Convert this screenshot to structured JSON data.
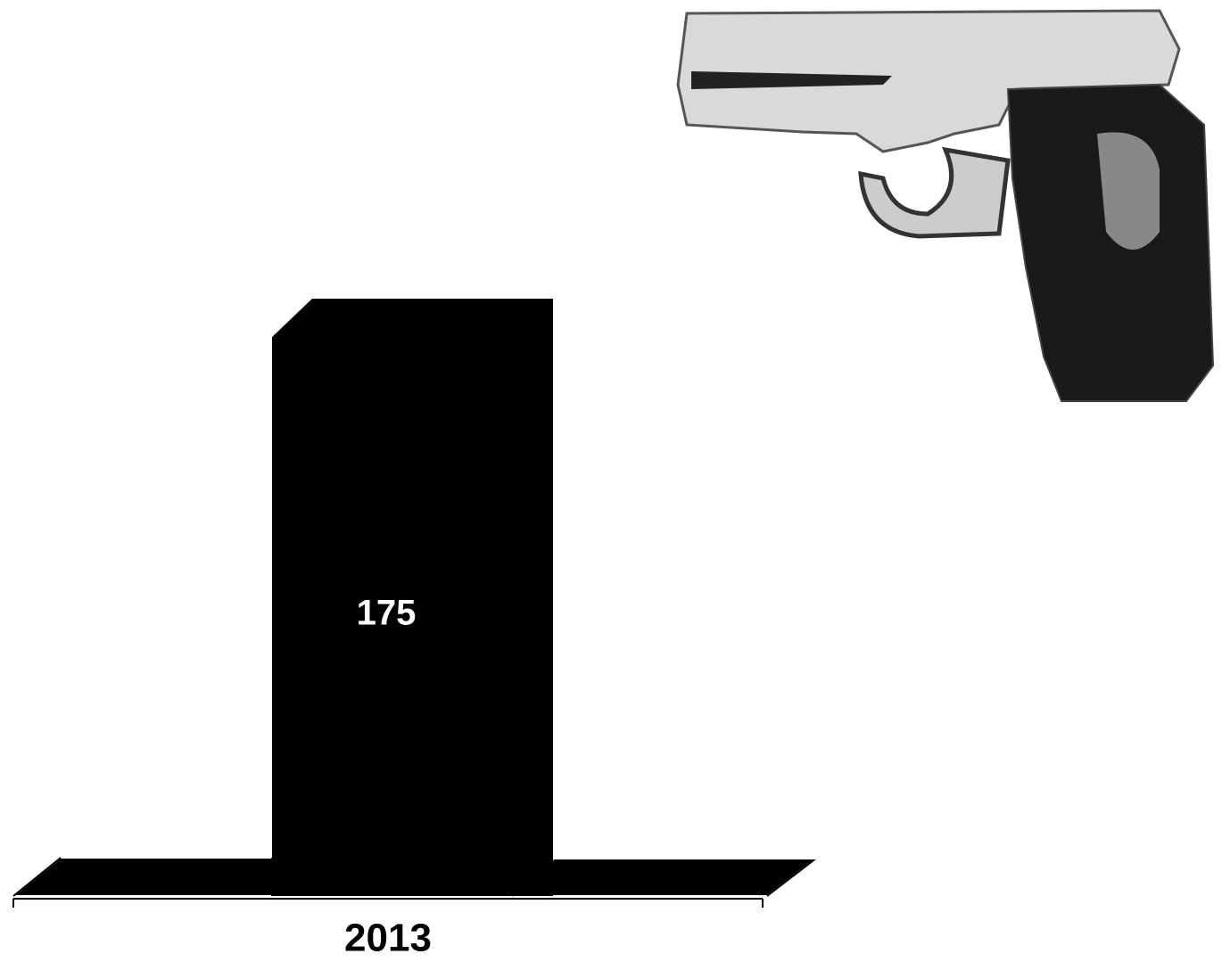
{
  "chart_data": {
    "type": "bar",
    "categories": [
      "2013"
    ],
    "values": [
      175
    ],
    "color": "#000000"
  }
}
